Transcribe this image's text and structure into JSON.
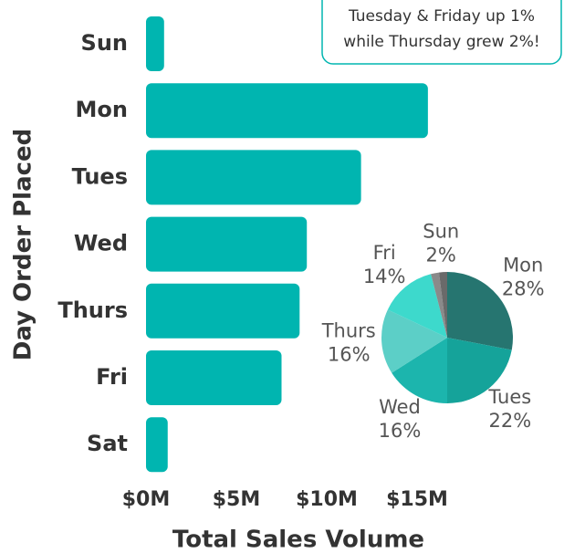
{
  "chart_data": [
    {
      "type": "hbar",
      "categories": [
        "Sun",
        "Mon",
        "Tues",
        "Wed",
        "Thurs",
        "Fri",
        "Sat"
      ],
      "values": [
        1.0,
        15.6,
        11.9,
        8.9,
        8.5,
        7.5,
        1.2
      ],
      "color": "#00b5b0",
      "xlim": [
        0,
        16
      ],
      "xticks": [
        {
          "value": 0,
          "label": "$0M"
        },
        {
          "value": 5,
          "label": "$5M"
        },
        {
          "value": 10,
          "label": "$10M"
        },
        {
          "value": 15,
          "label": "$15M"
        }
      ],
      "xlabel": "Total Sales Volume",
      "ylabel": "Day Order Placed",
      "annotation": [
        "Tuesday & Friday up 1%",
        "while Thursday grew 2%!"
      ]
    },
    {
      "type": "pie",
      "categories": [
        "Mon",
        "Tues",
        "Wed",
        "Thurs",
        "Fri",
        null,
        "Sun"
      ],
      "values": [
        28,
        22,
        16,
        16,
        14,
        2,
        2
      ],
      "value_labels": [
        "28%",
        "22%",
        "16%",
        "16%",
        "14%",
        null,
        "2%"
      ],
      "colors": [
        "#267570",
        "#15a39a",
        "#1cb5ad",
        "#5ccfc7",
        "#3dd9cc",
        "#8a8a8a",
        "#6a6a6a"
      ]
    }
  ]
}
